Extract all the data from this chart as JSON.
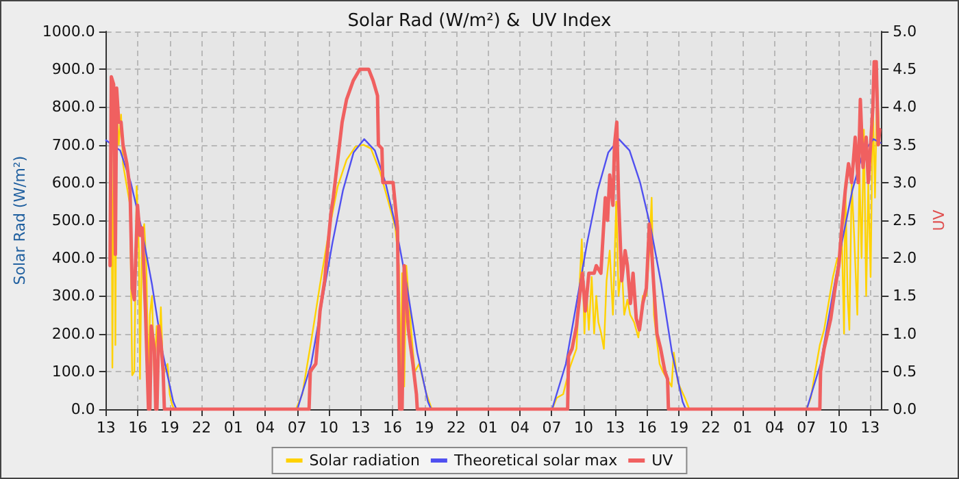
{
  "chart_data": {
    "type": "line",
    "title": "Solar Rad (W/m²) &  UV Index",
    "ylabel": "Solar Rad (W/m²)",
    "y2label": "UV",
    "xlim": [
      "--01-01T13:00",
      "--01-04T14:06"
    ],
    "xticks": [
      {
        "value": "--01-01T13:00",
        "label": "13"
      },
      {
        "value": "--01-01T16:00",
        "label": "16"
      },
      {
        "value": "--01-01T19:00",
        "label": "19"
      },
      {
        "value": "--01-01T22:00",
        "label": "22"
      },
      {
        "value": "--01-02T01:00",
        "label": "01"
      },
      {
        "value": "--01-02T04:00",
        "label": "04"
      },
      {
        "value": "--01-02T07:00",
        "label": "07"
      },
      {
        "value": "--01-02T10:00",
        "label": "10"
      },
      {
        "value": "--01-02T13:00",
        "label": "13"
      },
      {
        "value": "--01-02T16:00",
        "label": "16"
      },
      {
        "value": "--01-02T19:00",
        "label": "19"
      },
      {
        "value": "--01-02T22:00",
        "label": "22"
      },
      {
        "value": "--01-03T01:00",
        "label": "01"
      },
      {
        "value": "--01-03T04:00",
        "label": "04"
      },
      {
        "value": "--01-03T07:00",
        "label": "07"
      },
      {
        "value": "--01-03T10:00",
        "label": "10"
      },
      {
        "value": "--01-03T13:00",
        "label": "13"
      },
      {
        "value": "--01-03T16:00",
        "label": "16"
      },
      {
        "value": "--01-03T19:00",
        "label": "19"
      },
      {
        "value": "--01-03T22:00",
        "label": "22"
      },
      {
        "value": "--01-04T01:00",
        "label": "01"
      },
      {
        "value": "--01-04T04:00",
        "label": "04"
      },
      {
        "value": "--01-04T07:00",
        "label": "07"
      },
      {
        "value": "--01-04T10:00",
        "label": "10"
      },
      {
        "value": "--01-04T13:00",
        "label": "13"
      }
    ],
    "ylim": [
      0,
      1000
    ],
    "yticks": [
      {
        "value": 0,
        "label": "0.0"
      },
      {
        "value": 100,
        "label": "100.0"
      },
      {
        "value": 200,
        "label": "200.0"
      },
      {
        "value": 300,
        "label": "300.0"
      },
      {
        "value": 400,
        "label": "400.0"
      },
      {
        "value": 500,
        "label": "500.0"
      },
      {
        "value": 600,
        "label": "600.0"
      },
      {
        "value": 700,
        "label": "700.0"
      },
      {
        "value": 800,
        "label": "800.0"
      },
      {
        "value": 900,
        "label": "900.0"
      },
      {
        "value": 1000,
        "label": "1000.0"
      }
    ],
    "y2lim": [
      0,
      5
    ],
    "y2ticks": [
      {
        "value": 0,
        "label": "0.0"
      },
      {
        "value": 0.5,
        "label": "0.5"
      },
      {
        "value": 1,
        "label": "1.0"
      },
      {
        "value": 1.5,
        "label": "1.5"
      },
      {
        "value": 2,
        "label": "2.0"
      },
      {
        "value": 2.5,
        "label": "2.5"
      },
      {
        "value": 3,
        "label": "3.0"
      },
      {
        "value": 3.5,
        "label": "3.5"
      },
      {
        "value": 4,
        "label": "4.0"
      },
      {
        "value": 4.5,
        "label": "4.5"
      },
      {
        "value": 5,
        "label": "5.0"
      }
    ],
    "grid": true,
    "legend": "bottom",
    "marker": "none",
    "line_style": "solid",
    "series": [
      {
        "name": "Solar radiation",
        "color": "#ffd200",
        "x": [
          "--01-01T13:21",
          "--01-01T13:30",
          "--01-01T13:36",
          "--01-01T13:46",
          "--01-01T13:53",
          "--01-01T14:00",
          "--01-01T14:12",
          "--01-01T14:25",
          "--01-01T14:36",
          "--01-01T14:54",
          "--01-01T15:16",
          "--01-01T15:28",
          "--01-01T15:40",
          "--01-01T15:53",
          "--01-01T16:06",
          "--01-01T16:12",
          "--01-01T16:23",
          "--01-01T16:36",
          "--01-01T16:48",
          "--01-01T17:00",
          "--01-01T17:08",
          "--01-01T17:20",
          "--01-01T17:33",
          "--01-01T17:46",
          "--01-01T17:58",
          "--01-01T18:10",
          "--01-01T18:23",
          "--01-01T18:36",
          "--01-01T18:48",
          "--01-01T19:00",
          "--01-01T19:12",
          "--01-01T19:24",
          "--01-02T06:54",
          "--01-02T07:30",
          "--01-02T08:20",
          "--01-02T09:10",
          "--01-02T10:00",
          "--01-02T10:50",
          "--01-02T11:40",
          "--01-02T12:30",
          "--01-02T13:16",
          "--01-02T13:58",
          "--01-02T14:48",
          "--01-02T15:36",
          "--01-02T16:16",
          "--01-02T16:36",
          "--01-02T16:46",
          "--01-02T16:54",
          "--01-02T17:06",
          "--01-02T17:18",
          "--01-02T17:30",
          "--01-02T17:54",
          "--01-02T18:06",
          "--01-02T18:30",
          "--01-02T19:12",
          "--01-02T19:42",
          "--01-03T07:03",
          "--01-03T07:28",
          "--01-03T08:05",
          "--01-03T08:42",
          "--01-03T09:20",
          "--01-03T09:50",
          "--01-03T10:05",
          "--01-03T10:16",
          "--01-03T10:30",
          "--01-03T10:46",
          "--01-03T11:00",
          "--01-03T11:12",
          "--01-03T11:24",
          "--01-03T11:40",
          "--01-03T11:55",
          "--01-03T12:10",
          "--01-03T12:28",
          "--01-03T12:46",
          "--01-03T13:05",
          "--01-03T13:18",
          "--01-03T13:36",
          "--01-03T13:50",
          "--01-03T14:08",
          "--01-03T14:24",
          "--01-03T14:46",
          "--01-03T15:10",
          "--01-03T15:35",
          "--01-03T15:55",
          "--01-03T16:12",
          "--01-03T16:25",
          "--01-03T16:38",
          "--01-03T16:50",
          "--01-03T17:10",
          "--01-03T17:28",
          "--01-03T17:53",
          "--01-03T18:18",
          "--01-03T18:30",
          "--01-03T18:54",
          "--01-03T19:33",
          "--01-03T19:58",
          "--01-04T07:00",
          "--01-04T07:25",
          "--01-04T07:50",
          "--01-04T08:16",
          "--01-04T08:40",
          "--01-04T09:05",
          "--01-04T09:30",
          "--01-04T09:55",
          "--01-04T10:08",
          "--01-04T10:20",
          "--01-04T10:33",
          "--01-04T10:40",
          "--01-04T10:53",
          "--01-04T11:03",
          "--01-04T11:16",
          "--01-04T11:30",
          "--01-04T11:48",
          "--01-04T12:00",
          "--01-04T12:12",
          "--01-04T12:25",
          "--01-04T12:38",
          "--01-04T12:50",
          "--01-04T13:03",
          "--01-04T13:16",
          "--01-04T13:28",
          "--01-04T13:40",
          "--01-04T13:53"
        ],
        "values": [
          400,
          880,
          110,
          860,
          170,
          820,
          700,
          780,
          650,
          600,
          540,
          90,
          100,
          590,
          420,
          80,
          450,
          490,
          380,
          60,
          250,
          300,
          80,
          220,
          130,
          270,
          90,
          110,
          120,
          40,
          15,
          0,
          0,
          40,
          180,
          330,
          470,
          590,
          660,
          695,
          700,
          690,
          630,
          550,
          480,
          380,
          50,
          360,
          60,
          380,
          300,
          160,
          100,
          120,
          40,
          0,
          0,
          30,
          40,
          110,
          160,
          450,
          200,
          320,
          210,
          350,
          200,
          300,
          230,
          200,
          160,
          340,
          420,
          250,
          550,
          300,
          380,
          250,
          290,
          250,
          230,
          190,
          300,
          300,
          420,
          560,
          250,
          200,
          120,
          100,
          80,
          60,
          150,
          70,
          30,
          0,
          0,
          30,
          100,
          170,
          210,
          280,
          350,
          400,
          380,
          460,
          200,
          600,
          300,
          210,
          600,
          460,
          250,
          630,
          400,
          740,
          300,
          600,
          350,
          810,
          560,
          870,
          700
        ]
      },
      {
        "name": "Theoretical solar max",
        "color": "#5050f0",
        "x": [
          "--01-01T13:00",
          "--01-01T14:20",
          "--01-01T15:20",
          "--01-01T16:20",
          "--01-01T17:20",
          "--01-01T18:20",
          "--01-01T19:20",
          "--01-01T19:38",
          "--01-02T07:02",
          "--01-02T08:20",
          "--01-02T09:20",
          "--01-02T10:20",
          "--01-02T11:20",
          "--01-02T12:20",
          "--01-02T13:20",
          "--01-02T14:20",
          "--01-02T15:20",
          "--01-02T16:20",
          "--01-02T17:20",
          "--01-02T18:20",
          "--01-02T19:20",
          "--01-02T19:38",
          "--01-03T07:02",
          "--01-03T08:20",
          "--01-03T09:20",
          "--01-03T10:20",
          "--01-03T11:20",
          "--01-03T12:20",
          "--01-03T13:20",
          "--01-03T14:20",
          "--01-03T15:20",
          "--01-03T16:20",
          "--01-03T17:20",
          "--01-03T18:20",
          "--01-03T19:20",
          "--01-03T19:38",
          "--01-04T07:02",
          "--01-04T08:20",
          "--01-04T09:20",
          "--01-04T10:20",
          "--01-04T11:20",
          "--01-04T12:20",
          "--01-04T13:20",
          "--01-04T14:00"
        ],
        "values": [
          712,
          685,
          600,
          480,
          330,
          150,
          20,
          0,
          0,
          120,
          280,
          440,
          580,
          680,
          715,
          685,
          600,
          480,
          330,
          150,
          20,
          0,
          0,
          120,
          280,
          440,
          580,
          680,
          715,
          685,
          600,
          480,
          330,
          150,
          20,
          0,
          0,
          120,
          280,
          440,
          580,
          680,
          715,
          705
        ]
      },
      {
        "name": "UV",
        "color": "#f06060",
        "axis": "y2",
        "x": [
          "--01-01T13:23",
          "--01-01T13:30",
          "--01-01T13:43",
          "--01-01T13:53",
          "--01-01T14:00",
          "--01-01T14:12",
          "--01-01T14:25",
          "--01-01T14:36",
          "--01-01T14:58",
          "--01-01T15:16",
          "--01-01T15:28",
          "--01-01T15:40",
          "--01-01T15:58",
          "--01-01T16:12",
          "--01-01T16:25",
          "--01-01T16:43",
          "--01-01T17:00",
          "--01-01T17:08",
          "--01-01T17:16",
          "--01-01T17:33",
          "--01-01T17:41",
          "--01-01T17:48",
          "--01-01T17:58",
          "--01-01T18:10",
          "--01-01T18:23",
          "--01-01T18:30",
          "--01-02T08:08",
          "--01-02T08:15",
          "--01-02T08:46",
          "--01-02T09:10",
          "--01-02T09:36",
          "--01-02T10:12",
          "--01-02T10:25",
          "--01-02T11:15",
          "--01-02T11:40",
          "--01-02T12:18",
          "--01-02T12:55",
          "--01-02T13:45",
          "--01-02T14:10",
          "--01-02T14:35",
          "--01-02T14:40",
          "--01-02T15:00",
          "--01-02T15:05",
          "--01-02T16:03",
          "--01-02T16:28",
          "--01-02T16:40",
          "--01-02T16:54",
          "--01-02T17:06",
          "--01-02T17:30",
          "--01-02T17:55",
          "--01-02T18:15",
          "--01-02T18:20",
          "--01-03T08:30",
          "--01-03T08:35",
          "--01-03T08:55",
          "--01-03T09:20",
          "--01-03T09:38",
          "--01-03T09:53",
          "--01-03T10:10",
          "--01-03T10:30",
          "--01-03T11:00",
          "--01-03T11:12",
          "--01-03T11:38",
          "--01-03T12:03",
          "--01-03T12:16",
          "--01-03T12:28",
          "--01-03T12:46",
          "--01-03T12:55",
          "--01-03T13:08",
          "--01-03T13:18",
          "--01-03T13:36",
          "--01-03T13:55",
          "--01-03T14:08",
          "--01-03T14:25",
          "--01-03T14:40",
          "--01-03T14:58",
          "--01-03T15:16",
          "--01-03T15:35",
          "--01-03T15:55",
          "--01-03T16:12",
          "--01-03T16:25",
          "--01-03T16:38",
          "--01-03T16:55",
          "--01-03T17:16",
          "--01-03T17:40",
          "--01-03T17:55",
          "--01-03T18:00",
          "--01-04T08:16",
          "--01-04T08:20",
          "--01-04T08:40",
          "--01-04T09:18",
          "--01-04T09:42",
          "--01-04T10:03",
          "--01-04T10:20",
          "--01-04T10:40",
          "--01-04T10:58",
          "--01-04T11:16",
          "--01-04T11:36",
          "--01-04T11:53",
          "--01-04T12:05",
          "--01-04T12:20",
          "--01-04T12:38",
          "--01-04T12:50",
          "--01-04T13:16",
          "--01-04T13:23",
          "--01-04T13:35",
          "--01-04T13:46",
          "--01-04T13:55"
        ],
        "values": [
          1.9,
          4.4,
          4.3,
          2.05,
          4.25,
          3.8,
          3.8,
          3.5,
          3.25,
          2.9,
          1.6,
          1.45,
          2.7,
          2.3,
          2.4,
          1.3,
          0,
          0,
          1.1,
          0.8,
          0,
          0,
          1.1,
          0.9,
          0.5,
          0,
          0,
          0.5,
          0.6,
          1.3,
          1.7,
          2.6,
          2.8,
          3.8,
          4.1,
          4.35,
          4.5,
          4.5,
          4.35,
          4.15,
          3.5,
          3.45,
          3.0,
          3.0,
          2.4,
          0,
          0,
          1.9,
          1.05,
          0.6,
          0.2,
          0,
          0,
          0.7,
          0.8,
          1.1,
          1.5,
          1.8,
          1.3,
          1.8,
          1.8,
          1.9,
          1.8,
          2.8,
          2.5,
          3.1,
          2.7,
          3.5,
          3.8,
          2.8,
          1.7,
          2.1,
          1.9,
          1.4,
          1.8,
          1.2,
          1.05,
          1.4,
          1.6,
          2.45,
          2.1,
          1.6,
          1.0,
          0.8,
          0.5,
          0.4,
          0,
          0,
          0.5,
          0.8,
          1.2,
          1.6,
          1.9,
          2.4,
          2.9,
          3.25,
          3.0,
          3.6,
          3.0,
          4.1,
          3.2,
          3.6,
          3.0,
          4.0,
          4.6,
          4.6,
          3.5,
          3.7
        ]
      }
    ]
  }
}
